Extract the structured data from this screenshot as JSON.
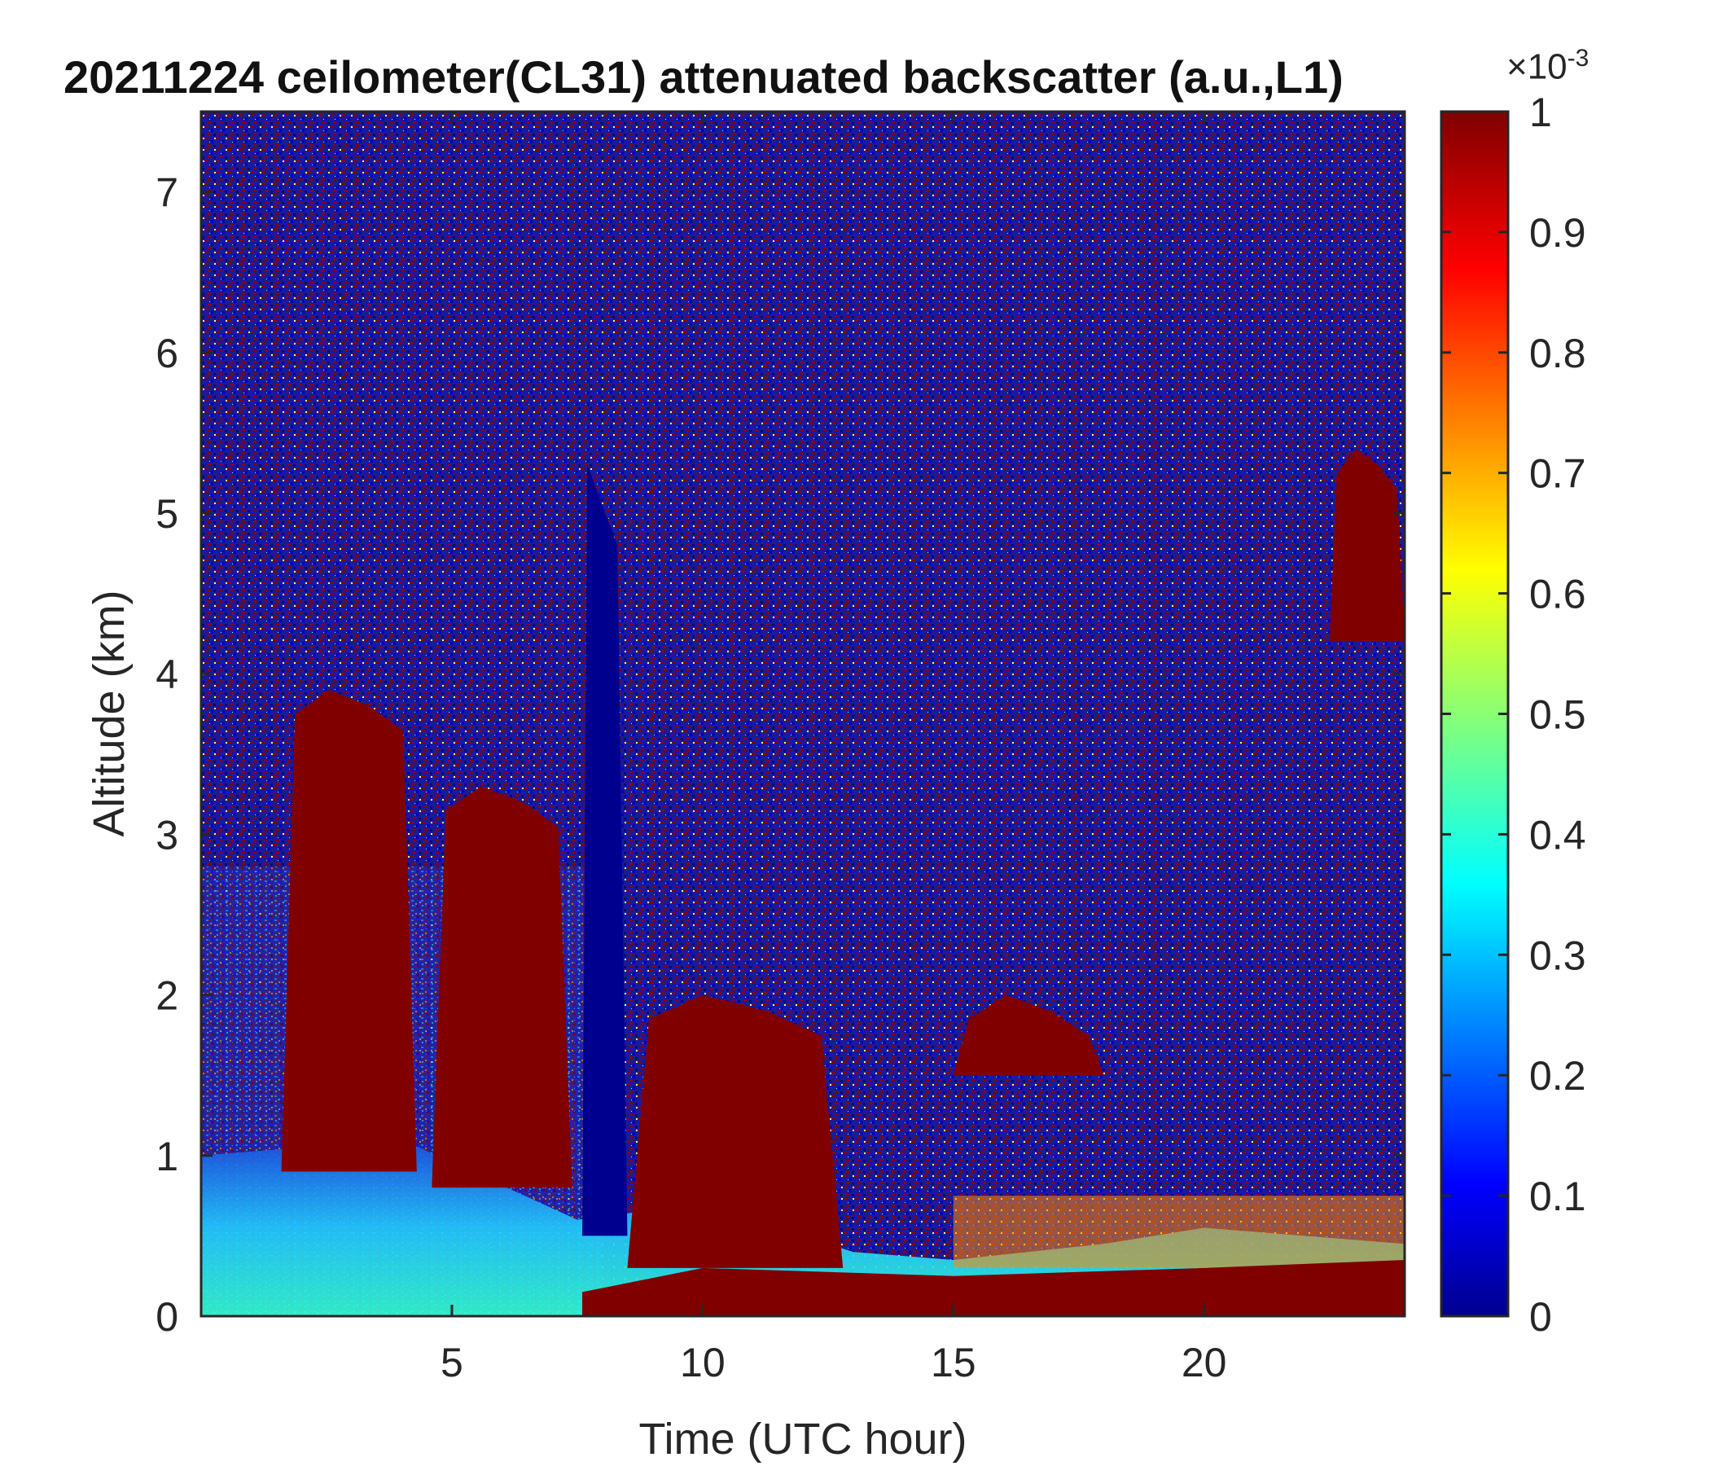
{
  "chart_data": {
    "type": "heatmap",
    "title": "20211224 ceilometer(CL31) attenuated backscatter (a.u.,L1)",
    "xlabel": "Time (UTC hour)",
    "ylabel": "Altitude (km)",
    "xlim": [
      0,
      24
    ],
    "ylim": [
      0,
      7.5
    ],
    "x_ticks": [
      5,
      10,
      15,
      20
    ],
    "y_ticks": [
      0,
      1,
      2,
      3,
      4,
      5,
      6,
      7
    ],
    "colorbar": {
      "colormap": "jet",
      "range": [
        0,
        1
      ],
      "ticks": [
        0,
        0.1,
        0.2,
        0.3,
        0.4,
        0.5,
        0.6,
        0.7,
        0.8,
        0.9,
        1
      ],
      "multiplier_base": "×10",
      "multiplier_exp": "-3"
    },
    "grid": false,
    "features": {
      "boundary_layer_top_km": [
        [
          0,
          1.0
        ],
        [
          4,
          1.1
        ],
        [
          7.5,
          0.6
        ],
        [
          10,
          0.7
        ],
        [
          13,
          0.4
        ],
        [
          15,
          0.35
        ],
        [
          18,
          0.45
        ],
        [
          20,
          0.55
        ],
        [
          24,
          0.45
        ]
      ],
      "low_cloud_base_km": [
        [
          7.6,
          0.15
        ],
        [
          10,
          0.3
        ],
        [
          15,
          0.25
        ],
        [
          20,
          0.3
        ],
        [
          24,
          0.35
        ]
      ],
      "cloud_columns": [
        {
          "t0": 1.6,
          "t1": 4.3,
          "base_km": 0.9,
          "top_km": 3.9
        },
        {
          "t0": 4.6,
          "t1": 7.4,
          "base_km": 0.8,
          "top_km": 3.3
        },
        {
          "t0": 8.5,
          "t1": 12.8,
          "base_km": 0.3,
          "top_km": 2.0
        },
        {
          "t0": 15.0,
          "t1": 18.0,
          "base_km": 1.5,
          "top_km": 2.0
        },
        {
          "t0": 22.5,
          "t1": 24.0,
          "base_km": 4.2,
          "top_km": 5.4
        }
      ],
      "clear_column_km": {
        "t0": 7.6,
        "t1": 8.5,
        "top_km": 5.3
      }
    }
  }
}
